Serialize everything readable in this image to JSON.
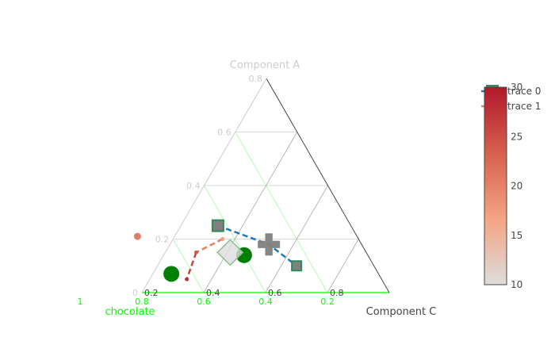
{
  "chart_data": {
    "type": "scatter",
    "subtype": "ternary",
    "title": "",
    "axes": {
      "a": {
        "title": "Component A",
        "title_color": "#cccccc",
        "tick_color": "#cccccc",
        "line_color": "#444444",
        "grid_color": "#cccccc",
        "min": 0.0,
        "ticks": [
          {
            "value": 0,
            "label": "0"
          },
          {
            "value": 0.2,
            "label": "0.2"
          },
          {
            "value": 0.4,
            "label": "0.4"
          },
          {
            "value": 0.6,
            "label": "0.6"
          },
          {
            "value": 0.8,
            "label": "0.8"
          }
        ]
      },
      "b": {
        "title": "chocolate",
        "title_color": "#00ff00",
        "tick_color": "#00ff00",
        "line_color": "#00ff00",
        "grid_color": "#99ff99",
        "min": 0.0,
        "ticks": [
          {
            "value": 0.2,
            "label": "0.2"
          },
          {
            "value": 0.4,
            "label": "0.4"
          },
          {
            "value": 0.6,
            "label": "0.6"
          },
          {
            "value": 0.8,
            "label": "0.8"
          },
          {
            "value": 1.0,
            "label": "1"
          }
        ]
      },
      "c": {
        "title": "Component C",
        "title_color": "#444444",
        "tick_color": "#444444",
        "line_color": "#444444",
        "grid_color": "#aaaaaa",
        "min": 0.2,
        "ticks": [
          {
            "value": 0.2,
            "label": "0.2"
          },
          {
            "value": 0.4,
            "label": "0.4"
          },
          {
            "value": 0.6,
            "label": "0.6"
          },
          {
            "value": 0.8,
            "label": "0.8"
          }
        ]
      }
    },
    "series": [
      {
        "name": "trace 0",
        "mode": "lines+markers",
        "line_color": "#1f77b4",
        "line_dash": "dash",
        "marker_symbol": "square",
        "marker_color": "#808080",
        "marker_line_color": "#2e8b57",
        "points": [
          {
            "a": 0.25,
            "b": 0.43,
            "c": 0.32,
            "size": 14,
            "symbol": "square"
          },
          {
            "a": 0.18,
            "b": 0.3,
            "c": 0.52,
            "size": 28,
            "symbol": "cross"
          },
          {
            "a": 0.1,
            "b": 0.25,
            "c": 0.65,
            "size": 12,
            "symbol": "square"
          }
        ]
      },
      {
        "name": "trace 1",
        "mode": "lines+markers",
        "line_dash": "dash",
        "line_colorscale": true,
        "colorscale": [
          "#dddddd",
          "#f4a582",
          "#d6604d",
          "#b2182b"
        ],
        "points": [
          {
            "a": 0.2,
            "b": 0.44,
            "c": 0.36,
            "color": 17
          },
          {
            "a": 0.15,
            "b": 0.55,
            "c": 0.3,
            "color": 24
          },
          {
            "a": 0.05,
            "b": 0.63,
            "c": 0.32,
            "color": 28
          }
        ]
      },
      {
        "name": "",
        "mode": "markers",
        "marker_color": "#008000",
        "points": [
          {
            "a": 0.14,
            "b": 0.4,
            "c": 0.46,
            "size": 20,
            "symbol": "circle"
          },
          {
            "a": 0.07,
            "b": 0.67,
            "c": 0.26,
            "size": 20,
            "symbol": "circle"
          },
          {
            "a": 0.15,
            "b": 0.44,
            "c": 0.41,
            "size": 32,
            "symbol": "diamond",
            "color": 10
          },
          {
            "a": 0.21,
            "b": 0.71,
            "c": 0.08,
            "size": 9,
            "symbol": "circle",
            "color": 22
          }
        ]
      }
    ],
    "legend": {
      "placement": "top-right",
      "entries": [
        "trace 0",
        "trace 1"
      ]
    },
    "colorbar": {
      "min": 10,
      "max": 30,
      "ticks": [
        10,
        15,
        20,
        25,
        30
      ],
      "colorscale": [
        "#dddddd",
        "#f4a582",
        "#d6604d",
        "#b2182b"
      ]
    }
  }
}
